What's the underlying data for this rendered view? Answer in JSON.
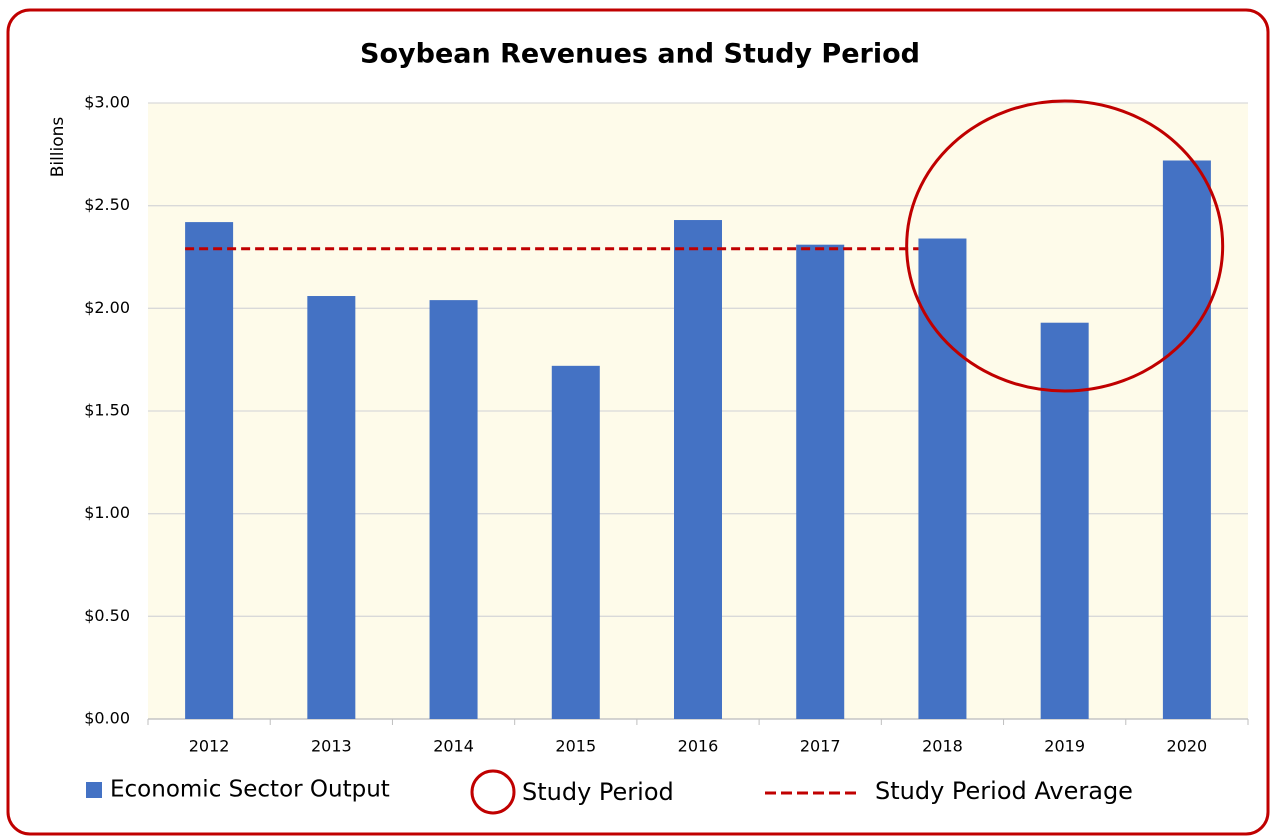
{
  "chart_data": {
    "type": "bar",
    "title": "Soybean Revenues and Study Period",
    "y_label": "Billions",
    "categories": [
      "2012",
      "2013",
      "2014",
      "2015",
      "2016",
      "2017",
      "2018",
      "2019",
      "2020"
    ],
    "series": [
      {
        "name": "Economic Sector Output",
        "color": "#4472c4",
        "values": [
          2.42,
          2.06,
          2.04,
          1.72,
          2.43,
          2.31,
          2.34,
          1.93,
          2.72
        ]
      }
    ],
    "average": {
      "name": "Study Period Average",
      "value": 2.29,
      "color": "#c00000"
    },
    "highlight": {
      "name": "Study Period",
      "color": "#c00000"
    },
    "ylim": [
      0,
      3
    ],
    "yticks": [
      {
        "value": 0,
        "label": "$0.00"
      },
      {
        "value": 0.5,
        "label": "$0.50"
      },
      {
        "value": 1,
        "label": "$1.00"
      },
      {
        "value": 1.5,
        "label": "$1.50"
      },
      {
        "value": 2,
        "label": "$2.00"
      },
      {
        "value": 2.5,
        "label": "$2.50"
      },
      {
        "value": 3,
        "label": "$3.00"
      }
    ],
    "grid": true
  }
}
